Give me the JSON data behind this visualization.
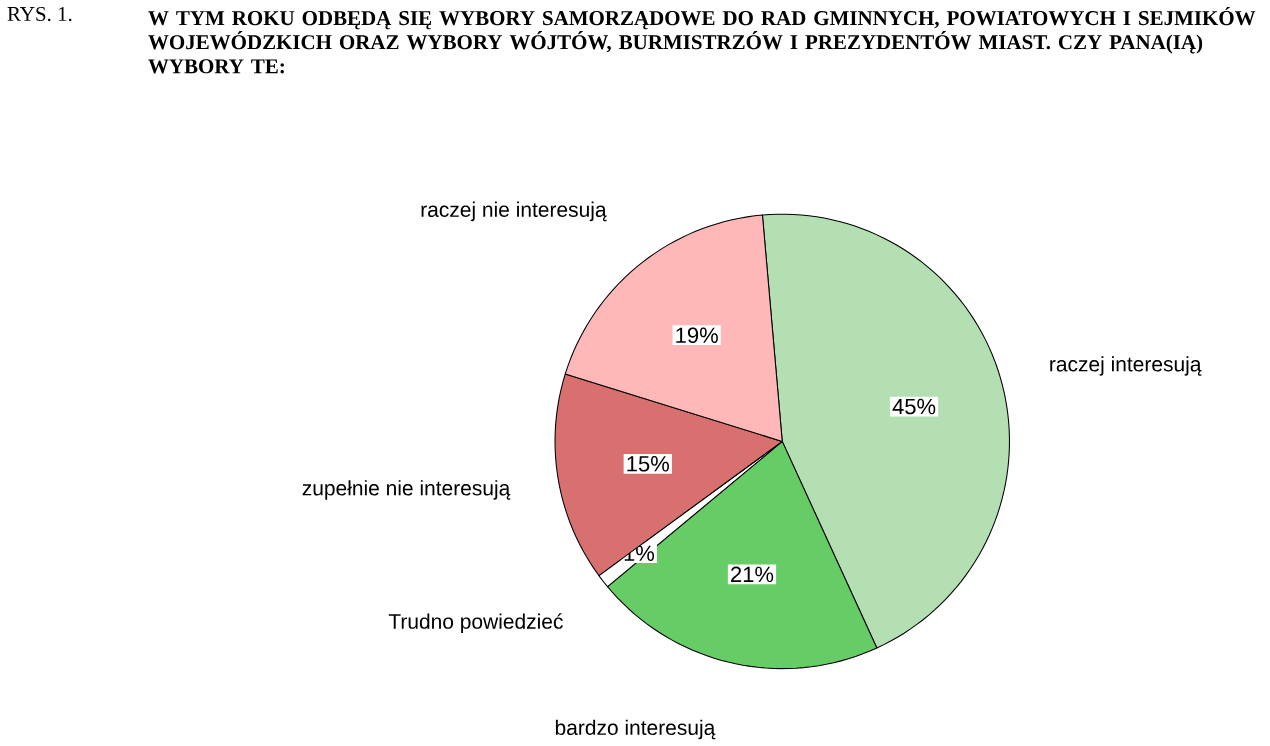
{
  "chart_data": {
    "type": "pie",
    "title": "W TYM ROKU ODBĘDĄ SIĘ WYBORY SAMORZĄDOWE DO RAD GMINNYCH, POWIATOWYCH I SEJMIKÓW WOJEWÓDZKICH ORAZ WYBORY WÓJTÓW, BURMISTRZÓW I PREZYDENTÓW MIAST. CZY PANA(IĄ) WYBORY TE:",
    "annotations": [
      "RYS. 1."
    ],
    "categories": [
      "raczej interesują",
      "bardzo interesują",
      "Trudno powiedzieć",
      "zupełnie nie interesują",
      "raczej nie interesują"
    ],
    "values": [
      45,
      21,
      1,
      15,
      19
    ],
    "value_labels": [
      "45%",
      "21%",
      "1%",
      "15%",
      "19%"
    ],
    "colors": [
      "#b3dfb3",
      "#66cc66",
      "#ffffff",
      "#d87070",
      "#ffb8b8"
    ]
  }
}
